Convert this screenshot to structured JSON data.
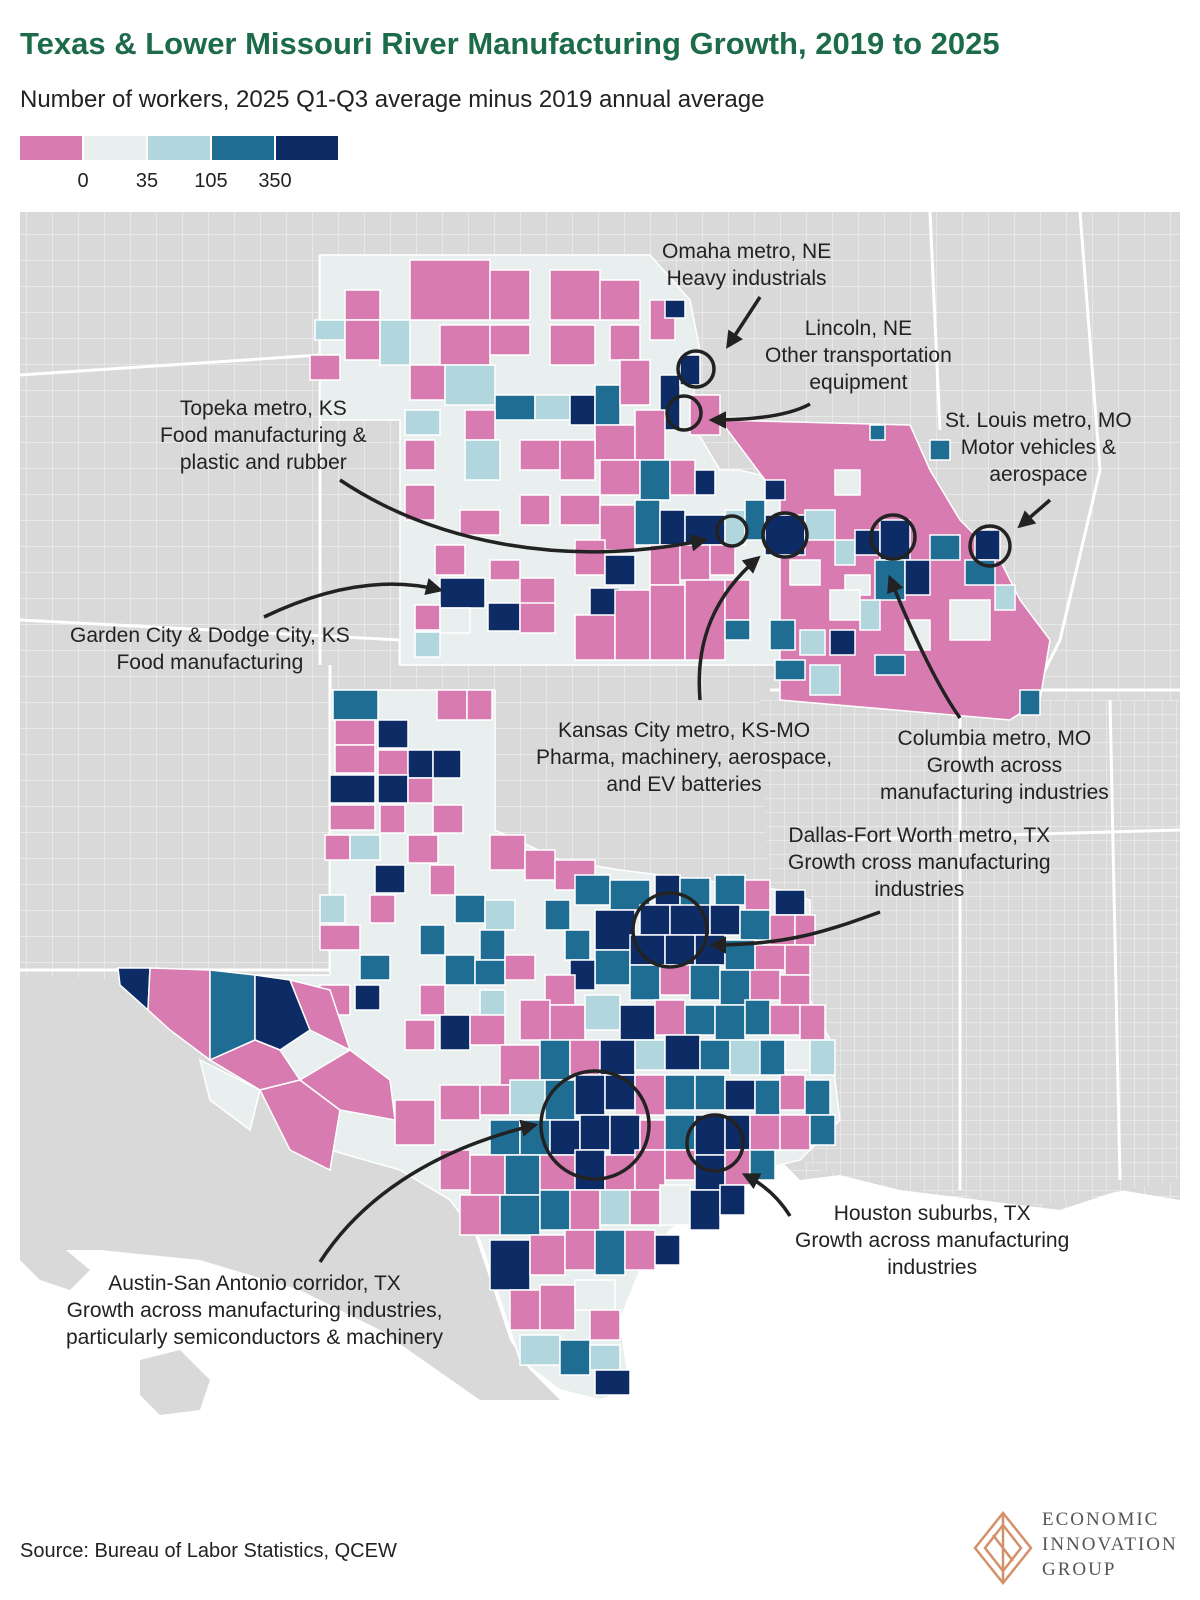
{
  "title": "Texas & Lower Missouri River Manufacturing Growth, 2019 to 2025",
  "subtitle": "Number of workers, 2025 Q1-Q3 average minus 2019 annual average",
  "legend": {
    "colors": [
      "#d77bb0",
      "#e9efef",
      "#b2d6de",
      "#1f6d93",
      "#0d2c66"
    ],
    "ticks": [
      "0",
      "35",
      "105",
      "350"
    ]
  },
  "colors": {
    "background_land": "#d9d9d9",
    "county_border": "#ffffff",
    "title_green": "#1c6b4a"
  },
  "annotations": {
    "omaha": {
      "line1": "Omaha metro, NE",
      "line2": "Heavy industrials"
    },
    "lincoln": {
      "line1": "Lincoln, NE",
      "line2": "Other transportation",
      "line3": "equipment"
    },
    "topeka": {
      "line1": "Topeka metro, KS",
      "line2": "Food manufacturing &",
      "line3": "plastic and rubber"
    },
    "stlouis": {
      "line1": "St. Louis metro, MO",
      "line2": "Motor vehicles &",
      "line3": "aerospace"
    },
    "garden": {
      "line1": "Garden City & Dodge City, KS",
      "line2": "Food manufacturing"
    },
    "kc": {
      "line1": "Kansas City metro, KS-MO",
      "line2": "Pharma, machinery, aerospace,",
      "line3": "and EV batteries"
    },
    "columbia": {
      "line1": "Columbia metro, MO",
      "line2": "Growth across",
      "line3": "manufacturing industries"
    },
    "dfw": {
      "line1": "Dallas-Fort Worth metro, TX",
      "line2": "Growth cross manufacturing",
      "line3": "industries"
    },
    "houston": {
      "line1": "Houston suburbs, TX",
      "line2": "Growth across manufacturing",
      "line3": "industries"
    },
    "austin": {
      "line1": "Austin-San Antonio corridor, TX",
      "line2": "Growth across manufacturing industries,",
      "line3": "particularly semiconductors & machinery"
    }
  },
  "source": "Source: Bureau of Labor Statistics, QCEW",
  "logo": {
    "line1": "ECONOMIC",
    "line2": "INNOVATION",
    "line3": "GROUP"
  }
}
